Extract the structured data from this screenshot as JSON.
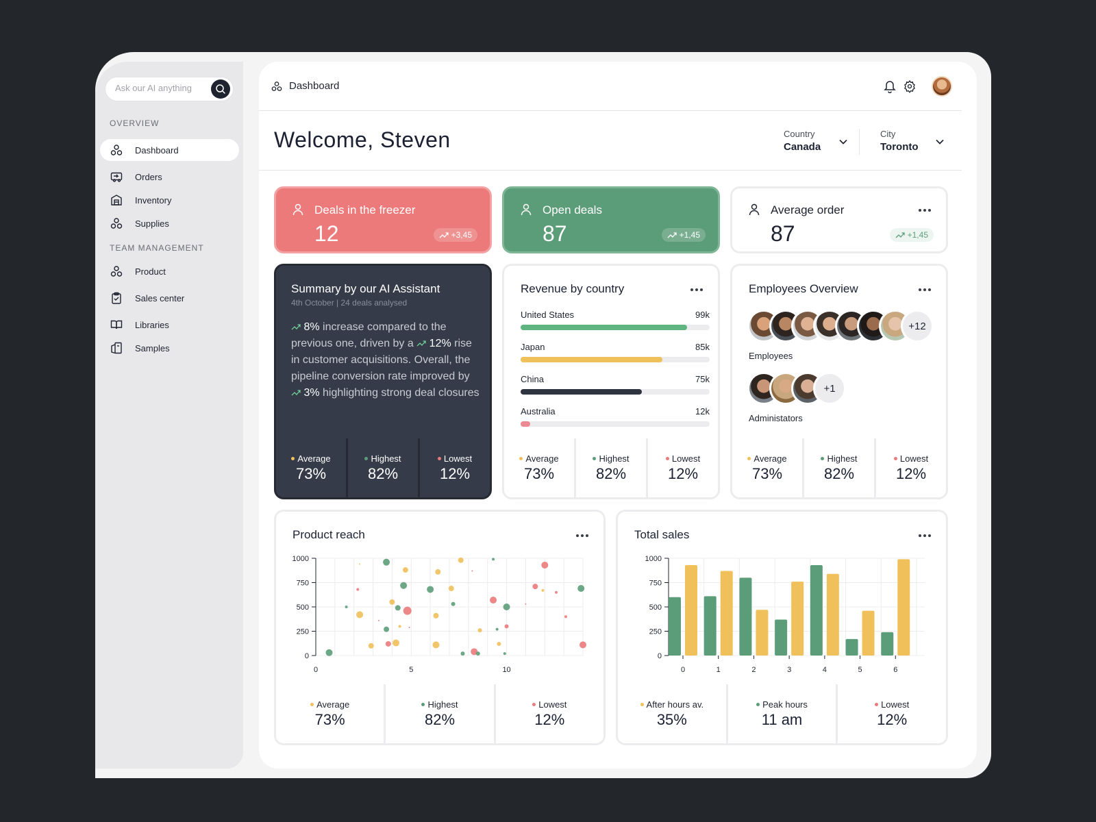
{
  "colors": {
    "green": "#5c9d79",
    "yellow": "#f0c05a",
    "red": "#ec7a7b",
    "dark": "#353b48"
  },
  "search": {
    "placeholder": "Ask our AI anything"
  },
  "sidebar": {
    "overview_label": "OVERVIEW",
    "team_label": "TEAM MANAGEMENT",
    "items": [
      {
        "label": "Dashboard",
        "icon": "dashboard-icon"
      },
      {
        "label": "Orders",
        "icon": "orders-icon"
      },
      {
        "label": "Inventory",
        "icon": "inventory-icon"
      },
      {
        "label": "Supplies",
        "icon": "supplies-icon"
      },
      {
        "label": "Product",
        "icon": "product-icon"
      },
      {
        "label": "Sales center",
        "icon": "clipboard-icon"
      },
      {
        "label": "Libraries",
        "icon": "book-icon"
      },
      {
        "label": "Samples",
        "icon": "samples-icon"
      }
    ]
  },
  "header": {
    "breadcrumb": "Dashboard",
    "welcome": "Welcome, Steven"
  },
  "filters": {
    "country": {
      "label": "Country",
      "value": "Canada"
    },
    "city": {
      "label": "City",
      "value": "Toronto"
    }
  },
  "kpis": [
    {
      "title": "Deals in the freezer",
      "value": "12",
      "change": "+3,45"
    },
    {
      "title": "Open deals",
      "value": "87",
      "change": "+1,45"
    },
    {
      "title": "Average order",
      "value": "87",
      "change": "+1,45"
    }
  ],
  "ai_summary": {
    "title": "Summary by our AI Assistant",
    "subtitle": "4th October | 24 deals analysed",
    "pct1": "8%",
    "text1": " increase compared to the previous one, driven by a ",
    "pct2": "12%",
    "text2": " rise in customer acquisitions. Overall, the pipeline conversion rate improved by ",
    "pct3": "3%",
    "text3": " highlighting strong deal closures"
  },
  "revenue": {
    "title": "Revenue by country",
    "items": [
      {
        "country": "United States",
        "value": "99k",
        "fraction": 0.88,
        "color": "#5fb57f"
      },
      {
        "country": "Japan",
        "value": "85k",
        "fraction": 0.75,
        "color": "#f0c05a"
      },
      {
        "country": "China",
        "value": "75k",
        "fraction": 0.64,
        "color": "#2e3440"
      },
      {
        "country": "Australia",
        "value": "12k",
        "fraction": 0.05,
        "color": "#ec8a93"
      }
    ]
  },
  "employees": {
    "title": "Employees Overview",
    "employees_label": "Employees",
    "employees_more": "+12",
    "admins_label": "Administators",
    "admins_more": "+1"
  },
  "stats": {
    "average": {
      "label": "Average",
      "value": "73%"
    },
    "highest": {
      "label": "Highest",
      "value": "82%"
    },
    "lowest": {
      "label": "Lowest",
      "value": "12%"
    }
  },
  "product_reach": {
    "title": "Product reach"
  },
  "total_sales": {
    "title": "Total sales",
    "after_hours": {
      "label": "After hours av.",
      "value": "35%"
    },
    "peak_hours": {
      "label": "Peak hours",
      "value": "11 am"
    },
    "lowest": {
      "label": "Lowest",
      "value": "12%"
    }
  },
  "chart_data": [
    {
      "type": "scatter",
      "title": "Product reach",
      "xlim": [
        0,
        14
      ],
      "ylim": [
        0,
        1000
      ],
      "x_ticks": [
        0,
        5,
        10
      ],
      "y_ticks": [
        0,
        250,
        500,
        750,
        1000
      ],
      "points": [
        {
          "x": 0.7,
          "y": 30,
          "c": "green",
          "s": 5
        },
        {
          "x": 1.6,
          "y": 500,
          "c": "green",
          "s": 2
        },
        {
          "x": 2.3,
          "y": 420,
          "c": "yellow",
          "s": 5
        },
        {
          "x": 2.9,
          "y": 100,
          "c": "yellow",
          "s": 4
        },
        {
          "x": 2.2,
          "y": 680,
          "c": "red",
          "s": 2
        },
        {
          "x": 2.3,
          "y": 940,
          "c": "yellow",
          "s": 1
        },
        {
          "x": 3.3,
          "y": 360,
          "c": "red",
          "s": 1
        },
        {
          "x": 3.8,
          "y": 120,
          "c": "red",
          "s": 4
        },
        {
          "x": 3.7,
          "y": 960,
          "c": "green",
          "s": 5
        },
        {
          "x": 3.7,
          "y": 270,
          "c": "green",
          "s": 4
        },
        {
          "x": 4.0,
          "y": 550,
          "c": "yellow",
          "s": 4
        },
        {
          "x": 4.4,
          "y": 300,
          "c": "yellow",
          "s": 2
        },
        {
          "x": 4.3,
          "y": 490,
          "c": "green",
          "s": 4
        },
        {
          "x": 4.6,
          "y": 720,
          "c": "green",
          "s": 5
        },
        {
          "x": 4.7,
          "y": 880,
          "c": "yellow",
          "s": 4
        },
        {
          "x": 4.8,
          "y": 460,
          "c": "red",
          "s": 6
        },
        {
          "x": 4.9,
          "y": 290,
          "c": "red",
          "s": 1
        },
        {
          "x": 4.2,
          "y": 130,
          "c": "yellow",
          "s": 5
        },
        {
          "x": 6.0,
          "y": 680,
          "c": "green",
          "s": 5
        },
        {
          "x": 6.3,
          "y": 410,
          "c": "yellow",
          "s": 4
        },
        {
          "x": 6.4,
          "y": 860,
          "c": "yellow",
          "s": 4
        },
        {
          "x": 6.3,
          "y": 110,
          "c": "yellow",
          "s": 5
        },
        {
          "x": 7.2,
          "y": 530,
          "c": "green",
          "s": 3
        },
        {
          "x": 7.1,
          "y": 690,
          "c": "yellow",
          "s": 4
        },
        {
          "x": 7.6,
          "y": 980,
          "c": "yellow",
          "s": 4
        },
        {
          "x": 7.7,
          "y": 20,
          "c": "green",
          "s": 3
        },
        {
          "x": 8.2,
          "y": 870,
          "c": "red",
          "s": 1
        },
        {
          "x": 8.3,
          "y": 40,
          "c": "red",
          "s": 5
        },
        {
          "x": 8.5,
          "y": 20,
          "c": "green",
          "s": 3
        },
        {
          "x": 8.6,
          "y": 260,
          "c": "yellow",
          "s": 3
        },
        {
          "x": 9.3,
          "y": 990,
          "c": "green",
          "s": 2
        },
        {
          "x": 9.3,
          "y": 570,
          "c": "red",
          "s": 5
        },
        {
          "x": 9.5,
          "y": 270,
          "c": "green",
          "s": 2
        },
        {
          "x": 9.6,
          "y": 120,
          "c": "yellow",
          "s": 3
        },
        {
          "x": 10.0,
          "y": 500,
          "c": "green",
          "s": 5
        },
        {
          "x": 10.0,
          "y": 300,
          "c": "red",
          "s": 3
        },
        {
          "x": 9.9,
          "y": 20,
          "c": "green",
          "s": 2
        },
        {
          "x": 11.0,
          "y": 530,
          "c": "red",
          "s": 1
        },
        {
          "x": 11.5,
          "y": 710,
          "c": "red",
          "s": 4
        },
        {
          "x": 11.9,
          "y": 670,
          "c": "yellow",
          "s": 2
        },
        {
          "x": 12.0,
          "y": 930,
          "c": "red",
          "s": 5
        },
        {
          "x": 12.6,
          "y": 650,
          "c": "red",
          "s": 2
        },
        {
          "x": 13.1,
          "y": 400,
          "c": "red",
          "s": 2
        },
        {
          "x": 13.9,
          "y": 690,
          "c": "green",
          "s": 5
        },
        {
          "x": 14.0,
          "y": 110,
          "c": "red",
          "s": 5
        }
      ]
    },
    {
      "type": "bar",
      "title": "Total sales",
      "categories": [
        "0",
        "1",
        "2",
        "3",
        "4",
        "5",
        "6"
      ],
      "ylim": [
        0,
        1000
      ],
      "y_ticks": [
        0,
        250,
        500,
        750,
        1000
      ],
      "series": [
        {
          "color": "green",
          "values": [
            600,
            610,
            800,
            370,
            930,
            170,
            240
          ]
        },
        {
          "color": "yellow",
          "values": [
            930,
            870,
            470,
            760,
            840,
            460,
            990
          ]
        }
      ]
    }
  ]
}
